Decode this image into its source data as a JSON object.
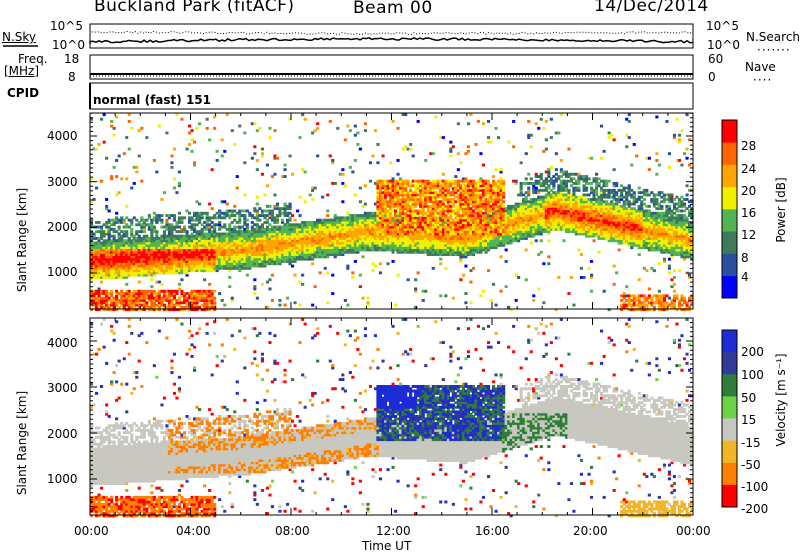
{
  "header": {
    "station": "Buckland Park (fitACF)",
    "beam": "Beam 00",
    "date": "14/Dec/2014"
  },
  "aux": {
    "nsky_label": "N.Sky",
    "nsearch_label": "N.Search",
    "noise_ticks_left": [
      "10^5",
      "10^0"
    ],
    "noise_ticks_right": [
      "10^5",
      "10^0"
    ],
    "freq_label": "Freq.",
    "freq_unit": "[MHz]",
    "freq_ticks": [
      "18",
      "8"
    ],
    "nave_label": "Nave",
    "nave_ticks": [
      "60",
      "0"
    ],
    "cpid_label": "CPID",
    "cpid_text": "normal (fast) 151"
  },
  "chart_data": [
    {
      "type": "heatmap",
      "title": "",
      "xlabel": "Time UT",
      "ylabel": "Slant Range [km]",
      "x_ticks": [
        "00:00",
        "04:00",
        "08:00",
        "12:00",
        "16:00",
        "20:00",
        "00:00"
      ],
      "xlim": [
        0,
        24
      ],
      "ylim": [
        180,
        4500
      ],
      "y_ticks": [
        1000,
        2000,
        3000,
        4000
      ],
      "colorbar": {
        "label": "Power [dB]",
        "ticks": [
          4,
          8,
          12,
          16,
          20,
          24,
          28
        ],
        "range": [
          0,
          30
        ],
        "colors": [
          "#0000ff",
          "#2a4f9e",
          "#3f7a5a",
          "#52b452",
          "#f0f000",
          "#ffa500",
          "#ff6400",
          "#ff0000"
        ]
      },
      "features": [
        {
          "name": "main band",
          "time_start": 0,
          "time_end": 24,
          "range_start_km": 900,
          "range_end_km": 2300,
          "value": "12-28 dB"
        },
        {
          "name": "midday enhancement",
          "time_start": 11.5,
          "time_end": 16.5,
          "range_start_km": 1800,
          "range_end_km": 3000,
          "value": "20-30 dB"
        },
        {
          "name": "near-range echoes",
          "time_start": 0,
          "time_end": 5,
          "range_start_km": 180,
          "range_end_km": 600,
          "value": "24-30 dB"
        }
      ]
    },
    {
      "type": "heatmap",
      "title": "",
      "xlabel": "Time UT",
      "ylabel": "Slant Range [km]",
      "x_ticks": [
        "00:00",
        "04:00",
        "08:00",
        "12:00",
        "16:00",
        "20:00",
        "00:00"
      ],
      "xlim": [
        0,
        24
      ],
      "ylim": [
        180,
        4500
      ],
      "y_ticks": [
        1000,
        2000,
        3000,
        4000
      ],
      "colorbar": {
        "label": "Velocity [m s⁻¹]",
        "ticks": [
          "200",
          "100",
          "50",
          "15",
          "-15",
          "-50",
          "-100",
          "-200"
        ],
        "colors": [
          "#1c2bd6",
          "#2f3a9a",
          "#2f7d3a",
          "#6cd24a",
          "#c8c8c0",
          "#f2b52a",
          "#ff7f00",
          "#ff0000"
        ]
      },
      "features": [
        {
          "name": "ground scatter",
          "time_start": 0,
          "time_end": 24,
          "range_start_km": 1000,
          "range_end_km": 2300,
          "value": "-15 to 15 m/s"
        },
        {
          "name": "receding echoes",
          "time_start": 3,
          "time_end": 11.5,
          "range_start_km": 1200,
          "range_end_km": 2800,
          "value": "-50 to -100 m/s"
        },
        {
          "name": "approaching echoes",
          "time_start": 11.8,
          "time_end": 16.5,
          "range_start_km": 2100,
          "range_end_km": 3100,
          "value": "100 to 200 m/s"
        }
      ]
    }
  ],
  "colors": {
    "blue": "#0000ff",
    "grey": "#c8c8c0",
    "red": "#ff0000",
    "orange": "#ffa500",
    "green": "#52b452"
  }
}
